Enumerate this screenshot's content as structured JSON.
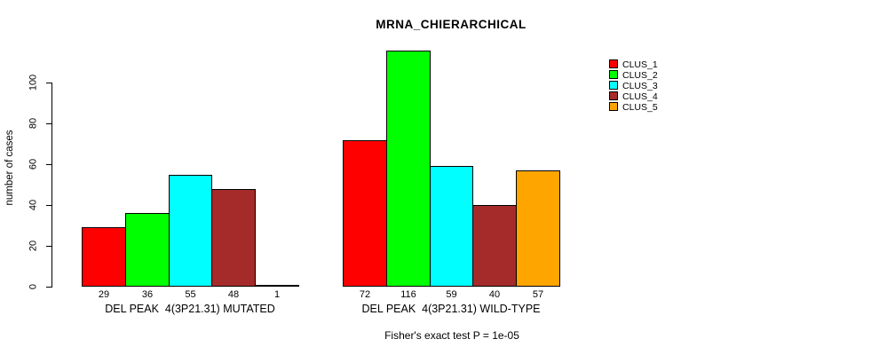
{
  "title": "MRNA_CHIERARCHICAL",
  "footnote": "Fisher's exact test P = 1e-05",
  "chart_data": {
    "type": "bar",
    "title": "MRNA_CHIERARCHICAL",
    "xlabel": "",
    "ylabel": "number of cases",
    "yticks": [
      "0",
      "20",
      "40",
      "60",
      "80",
      "100"
    ],
    "ytick_values": [
      0,
      20,
      40,
      60,
      80,
      100
    ],
    "axis_range": [
      0,
      100
    ],
    "grid": false,
    "legend_position": "right-outside",
    "series": [
      {
        "name": "CLUS_1",
        "color": "#FF0000"
      },
      {
        "name": "CLUS_2",
        "color": "#00FF00"
      },
      {
        "name": "CLUS_3",
        "color": "#00FFFF"
      },
      {
        "name": "CLUS_4",
        "color": "#A52A2A"
      },
      {
        "name": "CLUS_5",
        "color": "#FFA500"
      }
    ],
    "groups": [
      {
        "label": "DEL PEAK  4(3P21.31) MUTATED",
        "values": [
          29,
          36,
          55,
          48,
          1
        ],
        "value_labels": [
          "29",
          "36",
          "55",
          "48",
          "1"
        ]
      },
      {
        "label": "DEL PEAK  4(3P21.31) WILD-TYPE",
        "values": [
          72,
          116,
          59,
          40,
          57
        ],
        "value_labels": [
          "72",
          "116",
          "59",
          "40",
          "57"
        ]
      }
    ],
    "annotation": "Fisher's exact test P = 1e-05"
  }
}
